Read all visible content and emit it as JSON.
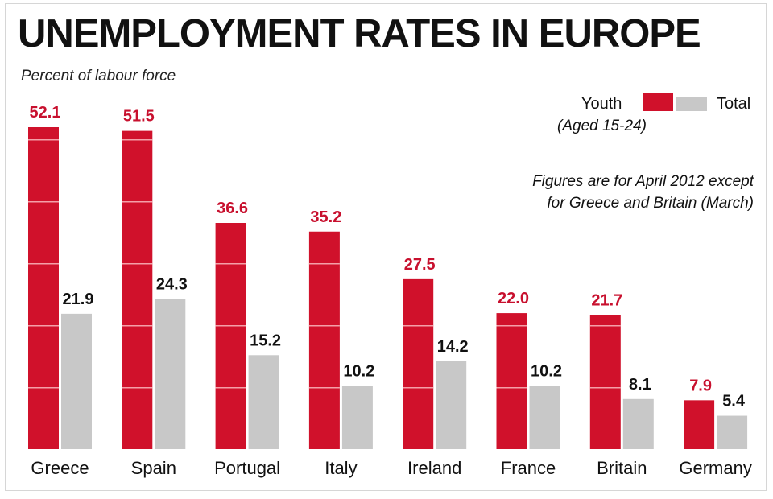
{
  "colors": {
    "youth": "#d0112b",
    "total": "#c8c8c8",
    "youth_label": "#c8102e",
    "total_label": "#111111",
    "band": "#f4a0a8"
  },
  "legend": {
    "youth_label": "Youth",
    "total_label": "Total",
    "age_note": "(Aged 15-24)"
  },
  "note": {
    "line1": "Figures are for April 2012 except",
    "line2": "for Greece and Britain (March)"
  },
  "chart_data": {
    "type": "bar",
    "title": "UNEMPLOYMENT RATES IN EUROPE",
    "subtitle": "Percent of labour force",
    "xlabel": "",
    "ylabel": "Percent of labour force",
    "ylim": [
      0,
      52.1
    ],
    "grid": false,
    "legend_position": "top-right",
    "categories": [
      "Greece",
      "Spain",
      "Portugal",
      "Italy",
      "Ireland",
      "France",
      "Britain",
      "Germany"
    ],
    "series": [
      {
        "name": "Youth",
        "values": [
          52.1,
          51.5,
          36.6,
          35.2,
          27.5,
          22.0,
          21.7,
          7.9
        ],
        "labels": [
          "52.1",
          "51.5",
          "36.6",
          "35.2",
          "27.5",
          "22.0",
          "21.7",
          "7.9"
        ]
      },
      {
        "name": "Total",
        "values": [
          21.9,
          24.3,
          15.2,
          10.2,
          14.2,
          10.2,
          8.1,
          5.4
        ],
        "labels": [
          "21.9",
          "24.3",
          "15.2",
          "10.2",
          "14.2",
          "10.2",
          "8.1",
          "5.4"
        ]
      }
    ]
  }
}
